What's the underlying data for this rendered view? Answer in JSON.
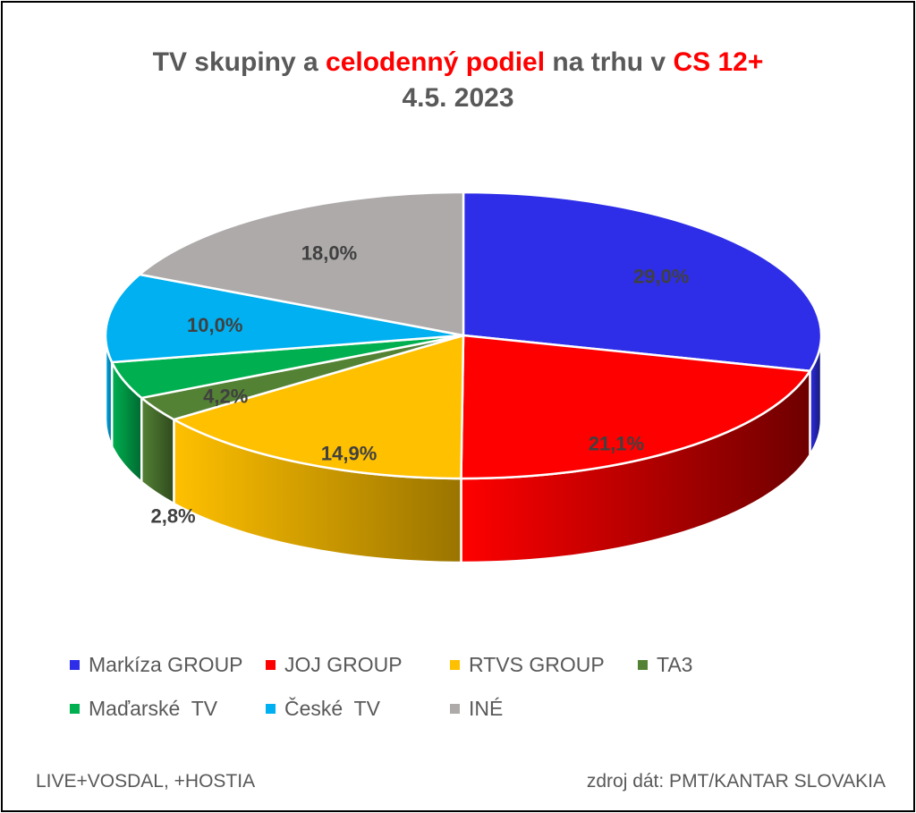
{
  "title": {
    "line1_parts": [
      {
        "text": "TV skupiny a ",
        "highlight": false
      },
      {
        "text": "celodenný podiel",
        "highlight": true
      },
      {
        "text": " na trhu v ",
        "highlight": false
      },
      {
        "text": "CS 12+",
        "highlight": true
      }
    ],
    "line2": "4.5. 2023"
  },
  "chart_data": {
    "type": "pie",
    "style": "3d",
    "title": "TV skupiny a celodenný podiel na trhu v CS 12+ 4.5. 2023",
    "unit": "%",
    "slices": [
      {
        "label": "Markíza GROUP",
        "value": 29.0,
        "data_label": "29,0%",
        "color": "#2e2ee8",
        "side_color": "#16166e"
      },
      {
        "label": "JOJ GROUP",
        "value": 21.1,
        "data_label": "21,1%",
        "color": "#ff0000",
        "side_color": "#6e0000"
      },
      {
        "label": "RTVS GROUP",
        "value": 14.9,
        "data_label": "14,9%",
        "color": "#ffc000",
        "side_color": "#9a7400"
      },
      {
        "label": "TA3",
        "value": 2.8,
        "data_label": "2,8%",
        "color": "#548235",
        "side_color": "#2f4a1d"
      },
      {
        "label": "Maďarské  TV",
        "value": 4.2,
        "data_label": "4,2%",
        "color": "#00b050",
        "side_color": "#006a30"
      },
      {
        "label": "České  TV",
        "value": 10.0,
        "data_label": "10,0%",
        "color": "#00b0f0",
        "side_color": "#006a90"
      },
      {
        "label": "INÉ",
        "value": 18.0,
        "data_label": "18,0%",
        "color": "#aeaaaa",
        "side_color": "#666666"
      }
    ],
    "legend_position": "bottom"
  },
  "footer": {
    "left": "LIVE+VOSDAL, +HOSTIA",
    "right": "zdroj dát: PMT/KANTAR SLOVAKIA"
  }
}
